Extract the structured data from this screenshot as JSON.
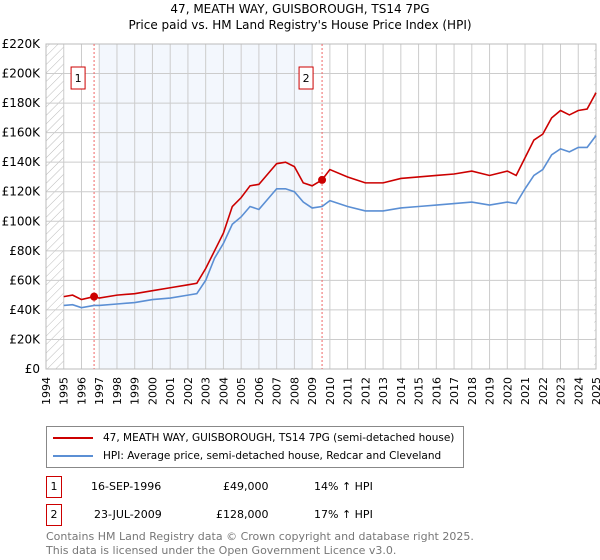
{
  "chart_data": {
    "type": "line",
    "title": "47, MEATH WAY, GUISBOROUGH, TS14 7PG",
    "subtitle": "Price paid vs. HM Land Registry's House Price Index (HPI)",
    "xlim": [
      1994,
      2025
    ],
    "ylim": [
      0,
      220000
    ],
    "yticks": [
      0,
      20000,
      40000,
      60000,
      80000,
      100000,
      120000,
      140000,
      160000,
      180000,
      200000,
      220000
    ],
    "ytick_labels": [
      "£0",
      "£20K",
      "£40K",
      "£60K",
      "£80K",
      "£100K",
      "£120K",
      "£140K",
      "£160K",
      "£180K",
      "£200K",
      "£220K"
    ],
    "xticks": [
      "1994",
      "1995",
      "1996",
      "1997",
      "1998",
      "1999",
      "2000",
      "2001",
      "2002",
      "2003",
      "2004",
      "2005",
      "2006",
      "2007",
      "2008",
      "2009",
      "2010",
      "2011",
      "2012",
      "2013",
      "2014",
      "2015",
      "2016",
      "2017",
      "2018",
      "2019",
      "2020",
      "2021",
      "2022",
      "2023",
      "2024",
      "2025"
    ],
    "grid": true,
    "shaded_range": [
      1997,
      2009
    ],
    "series": [
      {
        "name": "47, MEATH WAY, GUISBOROUGH, TS14 7PG (semi-detached house)",
        "color": "#cc0000",
        "x": [
          1995,
          1995.5,
          1996,
          1996.71,
          1997,
          1998,
          1999,
          2000,
          2001,
          2002,
          2002.5,
          2003,
          2003.5,
          2004,
          2004.5,
          2005,
          2005.5,
          2006,
          2006.5,
          2007,
          2007.5,
          2008,
          2008.5,
          2009,
          2009.56,
          2010,
          2011,
          2012,
          2013,
          2014,
          2015,
          2016,
          2017,
          2018,
          2019,
          2020,
          2020.5,
          2021,
          2021.5,
          2022,
          2022.5,
          2023,
          2023.5,
          2024,
          2024.5,
          2025
        ],
        "y": [
          49000,
          50000,
          47000,
          49000,
          48000,
          50000,
          51000,
          53000,
          55000,
          57000,
          58000,
          68000,
          80000,
          92000,
          110000,
          116000,
          124000,
          125000,
          132000,
          139000,
          140000,
          137000,
          126000,
          124000,
          128000,
          135000,
          130000,
          126000,
          126000,
          129000,
          130000,
          131000,
          132000,
          134000,
          131000,
          134000,
          131000,
          143000,
          155000,
          159000,
          170000,
          175000,
          172000,
          175000,
          176000,
          187000
        ]
      },
      {
        "name": "HPI: Average price, semi-detached house, Redcar and Cleveland",
        "color": "#5b8fd4",
        "x": [
          1995,
          1995.5,
          1996,
          1996.71,
          1997,
          1998,
          1999,
          2000,
          2001,
          2002,
          2002.5,
          2003,
          2003.5,
          2004,
          2004.5,
          2005,
          2005.5,
          2006,
          2006.5,
          2007,
          2007.5,
          2008,
          2008.5,
          2009,
          2009.56,
          2010,
          2011,
          2012,
          2013,
          2014,
          2015,
          2016,
          2017,
          2018,
          2019,
          2020,
          2020.5,
          2021,
          2021.5,
          2022,
          2022.5,
          2023,
          2023.5,
          2024,
          2024.5,
          2025
        ],
        "y": [
          43000,
          43500,
          41500,
          43000,
          43000,
          44000,
          45000,
          47000,
          48000,
          50000,
          51000,
          60000,
          75000,
          85000,
          98000,
          103000,
          110000,
          108000,
          115000,
          122000,
          122000,
          120000,
          113000,
          109000,
          110000,
          114000,
          110000,
          107000,
          107000,
          109000,
          110000,
          111000,
          112000,
          113000,
          111000,
          113000,
          112000,
          122000,
          131000,
          135000,
          145000,
          149000,
          147000,
          150000,
          150000,
          158000
        ]
      }
    ],
    "annotations": [
      {
        "label": "1",
        "x": 1996.71,
        "y": 49000
      },
      {
        "label": "2",
        "x": 2009.56,
        "y": 128000
      }
    ]
  },
  "transactions": [
    {
      "num": "1",
      "date": "16-SEP-1996",
      "price": "£49,000",
      "hpi": "14% ↑ HPI"
    },
    {
      "num": "2",
      "date": "23-JUL-2009",
      "price": "£128,000",
      "hpi": "17% ↑ HPI"
    }
  ],
  "footer": [
    "Contains HM Land Registry data © Crown copyright and database right 2025.",
    "This data is licensed under the Open Government Licence v3.0."
  ]
}
